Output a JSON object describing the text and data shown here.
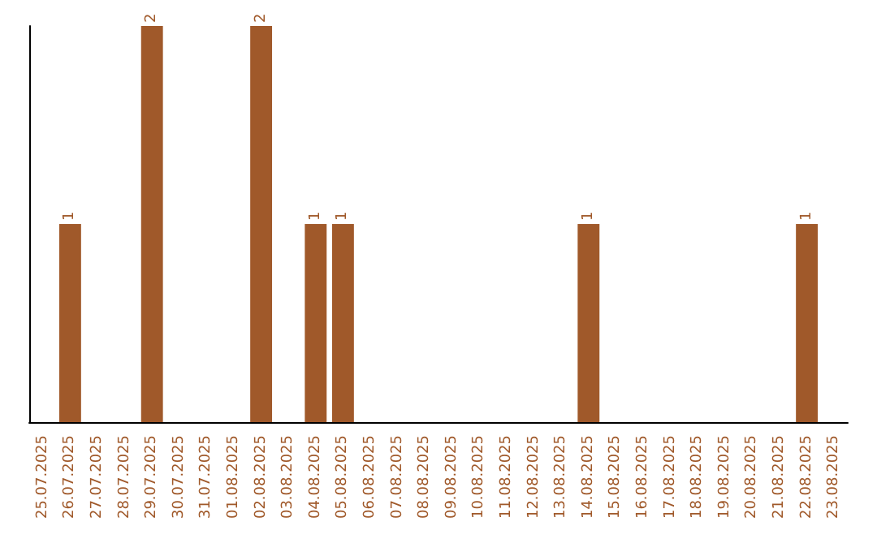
{
  "chart_data": {
    "type": "bar",
    "categories": [
      "25.07.2025",
      "26.07.2025",
      "27.07.2025",
      "28.07.2025",
      "29.07.2025",
      "30.07.2025",
      "31.07.2025",
      "01.08.2025",
      "02.08.2025",
      "03.08.2025",
      "04.08.2025",
      "05.08.2025",
      "06.08.2025",
      "07.08.2025",
      "08.08.2025",
      "09.08.2025",
      "10.08.2025",
      "11.08.2025",
      "12.08.2025",
      "13.08.2025",
      "14.08.2025",
      "15.08.2025",
      "16.08.2025",
      "17.08.2025",
      "18.08.2025",
      "19.08.2025",
      "20.08.2025",
      "21.08.2025",
      "22.08.2025",
      "23.08.2025"
    ],
    "values": [
      0,
      1,
      0,
      0,
      2,
      0,
      0,
      0,
      2,
      0,
      1,
      1,
      0,
      0,
      0,
      0,
      0,
      0,
      0,
      0,
      1,
      0,
      0,
      0,
      0,
      0,
      0,
      0,
      1,
      0
    ],
    "value_labels": [
      null,
      "1",
      null,
      null,
      "2",
      null,
      null,
      null,
      "2",
      null,
      "1",
      "1",
      null,
      null,
      null,
      null,
      null,
      null,
      null,
      null,
      "1",
      null,
      null,
      null,
      null,
      null,
      null,
      null,
      "1",
      null
    ],
    "color": "#a0592a",
    "tick_labels": "x",
    "grid": false
  }
}
